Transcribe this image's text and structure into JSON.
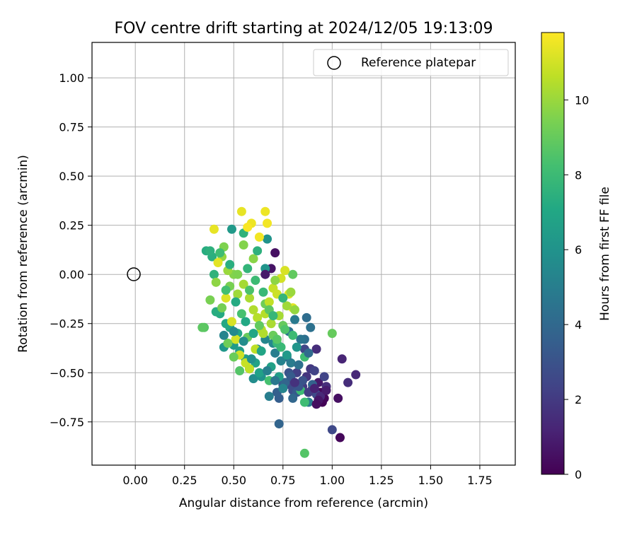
{
  "chart_data": {
    "type": "scatter",
    "title": "FOV centre drift starting at 2024/12/05 19:13:09",
    "xlabel": "Angular distance from reference (arcmin)",
    "ylabel": "Rotation from reference (arcmin)",
    "xlim": [
      -0.22,
      1.93
    ],
    "ylim": [
      -0.97,
      1.18
    ],
    "xticks": [
      "0.00",
      "0.25",
      "0.50",
      "0.75",
      "1.00",
      "1.25",
      "1.50",
      "1.75"
    ],
    "yticks": [
      "−0.75",
      "−0.50",
      "−0.25",
      "0.00",
      "0.25",
      "0.50",
      "0.75",
      "1.00"
    ],
    "grid": true,
    "colormap": "viridis",
    "colorbar": {
      "label": "Hours from first FF file",
      "range": [
        0,
        11.8
      ],
      "ticks": [
        "0",
        "2",
        "4",
        "6",
        "8",
        "10"
      ]
    },
    "legend": {
      "placement": "top-right",
      "entries": [
        {
          "label": "Reference platepar",
          "marker": "hollow-circle",
          "x": 0.0,
          "y": 0.0
        }
      ]
    },
    "series": [
      {
        "points": [
          [
            0.95,
            -0.65,
            0.1
          ],
          [
            0.96,
            -0.63,
            0.2
          ],
          [
            0.94,
            -0.6,
            0.3
          ],
          [
            1.04,
            -0.83,
            0.2
          ],
          [
            1.03,
            -0.63,
            0.5
          ],
          [
            0.71,
            0.11,
            0.5
          ],
          [
            0.69,
            0.03,
            0.6
          ],
          [
            0.93,
            -0.55,
            0.8
          ],
          [
            0.9,
            -0.58,
            1.0
          ],
          [
            1.05,
            -0.43,
            1.2
          ],
          [
            1.12,
            -0.51,
            1.3
          ],
          [
            1.08,
            -0.55,
            1.5
          ],
          [
            0.97,
            -0.57,
            1.6
          ],
          [
            0.92,
            -0.38,
            1.5
          ],
          [
            0.87,
            -0.52,
            1.8
          ],
          [
            0.85,
            -0.57,
            2.0
          ],
          [
            0.89,
            -0.48,
            1.9
          ],
          [
            0.82,
            -0.5,
            2.2
          ],
          [
            0.86,
            -0.38,
            2.5
          ],
          [
            0.91,
            -0.49,
            2.3
          ],
          [
            1.0,
            -0.79,
            2.6
          ],
          [
            0.78,
            -0.56,
            2.6
          ],
          [
            0.8,
            -0.59,
            2.8
          ],
          [
            0.78,
            -0.5,
            3.0
          ],
          [
            0.85,
            -0.54,
            3.0
          ],
          [
            0.82,
            -0.6,
            3.3
          ],
          [
            0.75,
            -0.56,
            3.2
          ],
          [
            0.73,
            -0.63,
            3.5
          ],
          [
            0.72,
            -0.6,
            3.6
          ],
          [
            0.73,
            -0.76,
            3.8
          ],
          [
            0.76,
            -0.55,
            3.8
          ],
          [
            0.8,
            -0.63,
            3.9
          ],
          [
            0.77,
            -0.42,
            4.0
          ],
          [
            0.87,
            -0.22,
            4.2
          ],
          [
            0.89,
            -0.27,
            4.4
          ],
          [
            0.86,
            -0.33,
            4.3
          ],
          [
            0.78,
            -0.29,
            4.5
          ],
          [
            0.84,
            -0.33,
            4.6
          ],
          [
            0.81,
            -0.23,
            4.8
          ],
          [
            0.79,
            -0.45,
            4.9
          ],
          [
            0.88,
            -0.65,
            4.8
          ],
          [
            0.68,
            -0.62,
            5.0
          ],
          [
            0.71,
            -0.4,
            5.0
          ],
          [
            0.74,
            -0.44,
            5.2
          ],
          [
            0.75,
            -0.58,
            5.3
          ],
          [
            0.7,
            -0.35,
            5.5
          ],
          [
            0.66,
            -0.33,
            5.4
          ],
          [
            0.62,
            -0.38,
            5.6
          ],
          [
            0.6,
            -0.53,
            5.7
          ],
          [
            0.58,
            -0.48,
            5.8
          ],
          [
            0.64,
            -0.52,
            6.0
          ],
          [
            0.67,
            0.18,
            6.0
          ],
          [
            0.66,
            0.03,
            6.1
          ],
          [
            0.49,
            0.23,
            6.3
          ],
          [
            0.45,
            -0.37,
            6.2
          ],
          [
            0.5,
            -0.36,
            6.4
          ],
          [
            0.53,
            -0.39,
            6.5
          ],
          [
            0.56,
            -0.43,
            6.6
          ],
          [
            0.61,
            -0.45,
            6.8
          ],
          [
            0.63,
            -0.5,
            6.7
          ],
          [
            0.52,
            -0.3,
            6.9
          ],
          [
            0.48,
            -0.27,
            7.0
          ],
          [
            0.46,
            -0.25,
            7.1
          ],
          [
            0.43,
            -0.2,
            7.2
          ],
          [
            0.41,
            -0.19,
            7.3
          ],
          [
            0.39,
            0.09,
            7.4
          ],
          [
            0.36,
            0.12,
            7.3
          ],
          [
            0.38,
            0.12,
            7.5
          ],
          [
            0.4,
            0.0,
            7.6
          ],
          [
            0.55,
            0.21,
            7.6
          ],
          [
            0.57,
            0.03,
            7.7
          ],
          [
            0.72,
            -0.35,
            7.8
          ],
          [
            0.74,
            -0.37,
            7.9
          ],
          [
            0.8,
            -0.31,
            8.0
          ],
          [
            0.86,
            -0.42,
            8.1
          ],
          [
            0.84,
            -0.59,
            8.0
          ],
          [
            0.86,
            -0.65,
            8.1
          ],
          [
            0.68,
            -0.54,
            8.3
          ],
          [
            0.53,
            -0.49,
            8.6
          ],
          [
            0.35,
            -0.27,
            8.7
          ],
          [
            0.34,
            -0.27,
            8.8
          ],
          [
            0.8,
            0.0,
            8.9
          ],
          [
            0.75,
            -0.26,
            9.0
          ],
          [
            0.7,
            -0.31,
            9.1
          ],
          [
            0.66,
            -0.15,
            9.2
          ],
          [
            0.86,
            -0.91,
            8.6
          ],
          [
            1.0,
            -0.3,
            9.0
          ],
          [
            0.38,
            -0.13,
            9.4
          ],
          [
            0.45,
            0.14,
            9.5
          ],
          [
            0.5,
            0.0,
            9.6
          ],
          [
            0.41,
            -0.04,
            9.8
          ],
          [
            0.44,
            0.09,
            9.9
          ],
          [
            0.47,
            0.02,
            10.0
          ],
          [
            0.52,
            -0.1,
            10.1
          ],
          [
            0.55,
            -0.05,
            10.2
          ],
          [
            0.58,
            -0.12,
            10.3
          ],
          [
            0.6,
            -0.18,
            10.4
          ],
          [
            0.62,
            -0.22,
            10.5
          ],
          [
            0.64,
            -0.28,
            10.6
          ],
          [
            0.66,
            -0.2,
            10.5
          ],
          [
            0.68,
            -0.14,
            10.7
          ],
          [
            0.7,
            -0.07,
            10.8
          ],
          [
            0.72,
            -0.1,
            10.9
          ],
          [
            0.74,
            -0.02,
            11.0
          ],
          [
            0.76,
            0.02,
            11.1
          ],
          [
            0.78,
            -0.1,
            11.2
          ],
          [
            0.8,
            -0.17,
            11.3
          ],
          [
            0.54,
            0.32,
            11.4
          ],
          [
            0.59,
            0.26,
            11.5
          ],
          [
            0.63,
            0.19,
            11.6
          ],
          [
            0.66,
            0.32,
            11.5
          ],
          [
            0.67,
            0.26,
            11.6
          ],
          [
            0.57,
            0.24,
            11.7
          ],
          [
            0.4,
            0.23,
            11.4
          ],
          [
            0.42,
            0.06,
            11.3
          ],
          [
            0.46,
            -0.12,
            11.2
          ],
          [
            0.49,
            -0.24,
            11.1
          ],
          [
            0.51,
            -0.33,
            11.0
          ],
          [
            0.53,
            -0.41,
            10.9
          ],
          [
            0.56,
            -0.45,
            10.8
          ],
          [
            0.58,
            -0.48,
            10.7
          ],
          [
            0.61,
            -0.38,
            10.6
          ],
          [
            0.65,
            -0.3,
            10.4
          ],
          [
            0.69,
            -0.25,
            10.3
          ],
          [
            0.73,
            -0.21,
            10.2
          ],
          [
            0.77,
            -0.16,
            10.1
          ],
          [
            0.79,
            -0.09,
            10.0
          ],
          [
            0.81,
            -0.18,
            9.9
          ],
          [
            0.71,
            -0.03,
            9.8
          ],
          [
            0.6,
            0.08,
            9.7
          ],
          [
            0.55,
            0.15,
            9.6
          ],
          [
            0.52,
            0.0,
            9.5
          ],
          [
            0.48,
            -0.06,
            9.4
          ],
          [
            0.44,
            -0.17,
            9.3
          ],
          [
            0.47,
            -0.35,
            9.2
          ],
          [
            0.5,
            -0.42,
            9.1
          ],
          [
            0.57,
            -0.32,
            9.0
          ],
          [
            0.63,
            -0.26,
            8.9
          ],
          [
            0.68,
            -0.18,
            8.8
          ],
          [
            0.72,
            -0.33,
            8.7
          ],
          [
            0.76,
            -0.28,
            8.5
          ],
          [
            0.58,
            -0.08,
            8.4
          ],
          [
            0.54,
            -0.2,
            8.3
          ],
          [
            0.46,
            -0.08,
            8.2
          ],
          [
            0.43,
            0.11,
            8.1
          ],
          [
            0.61,
            -0.03,
            8.0
          ],
          [
            0.65,
            -0.09,
            7.9
          ],
          [
            0.7,
            -0.21,
            7.8
          ],
          [
            0.75,
            -0.12,
            7.7
          ],
          [
            0.62,
            0.12,
            7.5
          ],
          [
            0.48,
            0.05,
            7.4
          ],
          [
            0.51,
            -0.14,
            7.2
          ],
          [
            0.56,
            -0.24,
            7.1
          ],
          [
            0.6,
            -0.3,
            7.0
          ],
          [
            0.64,
            -0.39,
            6.9
          ],
          [
            0.69,
            -0.47,
            6.7
          ],
          [
            0.73,
            -0.52,
            6.5
          ],
          [
            0.77,
            -0.41,
            6.3
          ],
          [
            0.82,
            -0.37,
            6.1
          ],
          [
            0.59,
            -0.43,
            5.9
          ],
          [
            0.55,
            -0.34,
            5.7
          ],
          [
            0.5,
            -0.29,
            5.5
          ],
          [
            0.45,
            -0.31,
            5.3
          ],
          [
            0.67,
            -0.49,
            5.1
          ],
          [
            0.71,
            -0.54,
            4.7
          ],
          [
            0.83,
            -0.46,
            4.4
          ],
          [
            0.88,
            -0.4,
            4.1
          ],
          [
            0.9,
            -0.56,
            3.7
          ],
          [
            0.79,
            -0.52,
            3.4
          ],
          [
            0.83,
            -0.57,
            3.1
          ],
          [
            0.92,
            -0.61,
            2.7
          ],
          [
            0.96,
            -0.52,
            2.4
          ],
          [
            0.88,
            -0.6,
            2.1
          ],
          [
            0.81,
            -0.55,
            1.7
          ],
          [
            0.94,
            -0.62,
            1.4
          ],
          [
            0.91,
            -0.58,
            1.1
          ],
          [
            0.97,
            -0.59,
            0.9
          ],
          [
            0.93,
            -0.64,
            0.7
          ],
          [
            0.92,
            -0.66,
            0.4
          ],
          [
            0.66,
            0.0,
            0.8
          ]
        ]
      }
    ]
  }
}
